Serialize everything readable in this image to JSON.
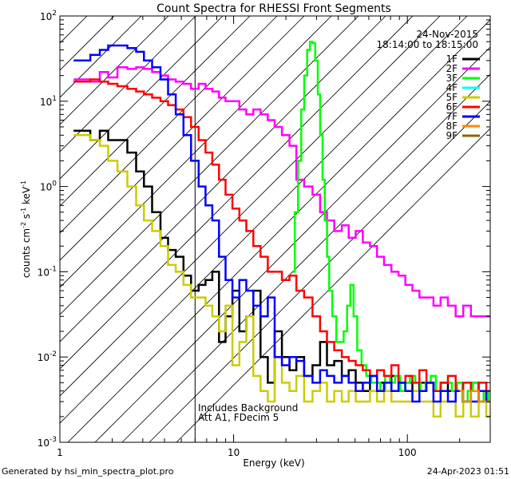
{
  "chart_data": {
    "type": "line",
    "title": "Count Spectra for RHESSI Front Segments",
    "xlabel": "Energy (keV)",
    "ylabel_parts": [
      "counts cm",
      "-2",
      " s",
      "-1",
      " keV",
      "-1"
    ],
    "xscale": "log",
    "yscale": "log",
    "xlim": [
      1,
      300
    ],
    "ylim": [
      0.001,
      100
    ],
    "x_tick_labels": [
      {
        "v": 1,
        "t": "1"
      },
      {
        "v": 10,
        "t": "10"
      },
      {
        "v": 100,
        "t": "100"
      }
    ],
    "y_tick_labels": [
      {
        "v": 0.001,
        "b": "10",
        "e": "-3"
      },
      {
        "v": 0.01,
        "b": "10",
        "e": "-2"
      },
      {
        "v": 0.1,
        "b": "10",
        "e": "-1"
      },
      {
        "v": 1,
        "b": "10",
        "e": "0"
      },
      {
        "v": 10,
        "b": "10",
        "e": "1"
      },
      {
        "v": 100,
        "b": "10",
        "e": "2"
      }
    ],
    "date_text": "24-Nov-2015",
    "time_text": "18:14:00 to 18:15:00",
    "annotation_lines": [
      "Includes Background",
      "Att A1, FDecim 5"
    ],
    "attenuated_below_keV": 6,
    "footer_left": "Generated by hsi_min_spectra_plot.pro",
    "footer_right": "24-Apr-2023 01:51",
    "legend": [
      {
        "name": "1F",
        "color": "#000000"
      },
      {
        "name": "2F",
        "color": "#ff00ff"
      },
      {
        "name": "3F",
        "color": "#00ff00"
      },
      {
        "name": "4F",
        "color": "#00ffff"
      },
      {
        "name": "5F",
        "color": "#cccc00"
      },
      {
        "name": "6F",
        "color": "#ff0000"
      },
      {
        "name": "7F",
        "color": "#0000ff"
      },
      {
        "name": "8F",
        "color": "#ff8800"
      },
      {
        "name": "9F",
        "color": "#886600"
      }
    ],
    "series": [
      {
        "name": "1F",
        "color": "#000000",
        "x": [
          1.2,
          1.4,
          1.6,
          1.8,
          2.0,
          2.3,
          2.6,
          2.9,
          3.2,
          3.6,
          4.0,
          4.4,
          4.9,
          5.4,
          6.0,
          6.6,
          7.2,
          7.9,
          8.6,
          9.4,
          10.3,
          11.3,
          12.4,
          13.6,
          15,
          16.5,
          18,
          20,
          22,
          24,
          27,
          30,
          33,
          36,
          40,
          44,
          48,
          53,
          58,
          64,
          70,
          77,
          85,
          93,
          102,
          112,
          123,
          135,
          148,
          163,
          180,
          200,
          220,
          245,
          270,
          300
        ],
        "y": [
          4.5,
          4.5,
          3.5,
          4.5,
          3.5,
          3.5,
          2.5,
          1.5,
          1.0,
          0.5,
          0.25,
          0.18,
          0.15,
          0.09,
          0.06,
          0.07,
          0.08,
          0.1,
          0.015,
          0.03,
          0.06,
          0.02,
          0.03,
          0.06,
          0.01,
          0.005,
          0.02,
          0.01,
          0.007,
          0.01,
          0.006,
          0.008,
          0.015,
          0.008,
          0.009,
          0.006,
          0.007,
          0.005,
          0.004,
          0.006,
          0.005,
          0.004,
          0.006,
          0.005,
          0.005,
          0.004,
          0.005,
          0.005,
          0.004,
          0.005,
          0.004,
          0.004,
          0.003,
          0.005,
          0.003,
          0.004
        ]
      },
      {
        "name": "2F",
        "color": "#ff00ff",
        "x": [
          1.2,
          1.4,
          1.6,
          1.8,
          2.0,
          2.3,
          2.6,
          2.9,
          3.2,
          3.6,
          4.0,
          4.4,
          4.9,
          5.4,
          6.0,
          6.6,
          7.2,
          7.9,
          8.6,
          9.4,
          10.3,
          11.3,
          12.4,
          13.6,
          15,
          16.5,
          18,
          20,
          22,
          24,
          27,
          30,
          33,
          36,
          40,
          44,
          48,
          53,
          58,
          64,
          70,
          77,
          85,
          93,
          102,
          112,
          123,
          135,
          148,
          163,
          180,
          200,
          220,
          245,
          270,
          300
        ],
        "y": [
          18,
          18,
          17,
          22,
          19,
          25,
          24,
          25,
          24,
          22,
          20,
          18,
          17,
          16,
          14,
          16,
          14,
          13,
          11,
          10,
          10,
          8,
          7,
          8,
          7,
          6,
          5,
          4,
          3,
          1.2,
          1.0,
          0.8,
          0.5,
          0.4,
          0.3,
          0.35,
          0.25,
          0.3,
          0.22,
          0.2,
          0.15,
          0.12,
          0.1,
          0.09,
          0.07,
          0.06,
          0.05,
          0.05,
          0.04,
          0.05,
          0.04,
          0.03,
          0.04,
          0.03,
          0.03,
          0.03
        ]
      },
      {
        "name": "3F",
        "color": "#00ff00",
        "x": [
          22,
          23,
          24,
          25,
          26,
          27,
          28,
          29,
          30,
          31,
          32,
          33,
          34,
          35,
          36,
          38,
          40,
          42,
          44,
          46,
          48,
          50,
          53,
          56,
          60,
          64,
          68,
          72,
          77,
          82,
          88,
          94,
          100,
          107,
          115,
          123,
          132,
          141,
          151,
          162,
          174,
          187,
          200,
          215,
          230,
          247,
          265,
          285,
          300
        ],
        "y": [
          0.1,
          0.5,
          2,
          8,
          20,
          40,
          50,
          48,
          30,
          12,
          4,
          1.2,
          0.4,
          0.15,
          0.06,
          0.03,
          0.015,
          0.015,
          0.02,
          0.04,
          0.07,
          0.03,
          0.012,
          0.008,
          0.006,
          0.005,
          0.005,
          0.004,
          0.006,
          0.005,
          0.006,
          0.004,
          0.005,
          0.006,
          0.005,
          0.004,
          0.005,
          0.006,
          0.004,
          0.005,
          0.005,
          0.004,
          0.005,
          0.003,
          0.004,
          0.005,
          0.004,
          0.003,
          0.004
        ]
      },
      {
        "name": "5F",
        "color": "#cccc00",
        "x": [
          1.2,
          1.4,
          1.6,
          1.8,
          2.0,
          2.3,
          2.6,
          2.9,
          3.2,
          3.6,
          4.0,
          4.4,
          4.9,
          5.4,
          6.0,
          6.6,
          7.2,
          7.9,
          8.6,
          9.4,
          10.3,
          11.3,
          12.4,
          13.6,
          15,
          16.5,
          18,
          20,
          22,
          24,
          27,
          30,
          33,
          36,
          40,
          44,
          48,
          53,
          58,
          64,
          70,
          77,
          85,
          93,
          102,
          112,
          123,
          135,
          148,
          163,
          180,
          200,
          220,
          245,
          270,
          300
        ],
        "y": [
          4.0,
          4.0,
          3.5,
          3.0,
          2.0,
          1.5,
          1.0,
          0.6,
          0.4,
          0.3,
          0.2,
          0.12,
          0.1,
          0.07,
          0.05,
          0.05,
          0.04,
          0.03,
          0.02,
          0.04,
          0.008,
          0.015,
          0.03,
          0.006,
          0.004,
          0.003,
          0.01,
          0.005,
          0.004,
          0.006,
          0.003,
          0.004,
          0.005,
          0.003,
          0.004,
          0.003,
          0.004,
          0.003,
          0.003,
          0.004,
          0.003,
          0.004,
          0.003,
          0.003,
          0.003,
          0.004,
          0.003,
          0.003,
          0.002,
          0.003,
          0.003,
          0.002,
          0.003,
          0.002,
          0.003,
          0.002
        ]
      },
      {
        "name": "6F",
        "color": "#ff0000",
        "x": [
          1.2,
          1.4,
          1.6,
          1.8,
          2.0,
          2.3,
          2.6,
          2.9,
          3.2,
          3.6,
          4.0,
          4.4,
          4.9,
          5.4,
          6.0,
          6.6,
          7.2,
          7.9,
          8.6,
          9.4,
          10.3,
          11.3,
          12.4,
          13.6,
          15,
          16.5,
          18,
          20,
          22,
          24,
          27,
          30,
          33,
          36,
          40,
          44,
          48,
          53,
          58,
          64,
          70,
          77,
          85,
          93,
          102,
          112,
          123,
          135,
          148,
          163,
          180,
          200,
          220,
          245,
          270,
          300
        ],
        "y": [
          17,
          17,
          18,
          17,
          16,
          15,
          14,
          13,
          12,
          11,
          10,
          9,
          8,
          6.5,
          5.0,
          3.5,
          2.5,
          1.8,
          1.2,
          0.8,
          0.55,
          0.4,
          0.3,
          0.2,
          0.15,
          0.1,
          0.1,
          0.08,
          0.09,
          0.06,
          0.05,
          0.03,
          0.02,
          0.015,
          0.012,
          0.01,
          0.009,
          0.008,
          0.007,
          0.006,
          0.007,
          0.006,
          0.008,
          0.005,
          0.006,
          0.005,
          0.007,
          0.005,
          0.004,
          0.005,
          0.006,
          0.004,
          0.005,
          0.004,
          0.005,
          0.004
        ]
      },
      {
        "name": "7F",
        "color": "#0000ff",
        "x": [
          1.2,
          1.4,
          1.6,
          1.8,
          2.0,
          2.3,
          2.6,
          2.9,
          3.2,
          3.6,
          4.0,
          4.4,
          4.9,
          5.4,
          6.0,
          6.6,
          7.2,
          7.9,
          8.6,
          9.4,
          10.3,
          11.3,
          12.4,
          13.6,
          15,
          16.5,
          18,
          20,
          22,
          24,
          27,
          30,
          33,
          36,
          40,
          44,
          48,
          53,
          58,
          64,
          70,
          77,
          85,
          93,
          102,
          112,
          123,
          135,
          148,
          163,
          180,
          200,
          220,
          245,
          270,
          300
        ],
        "y": [
          30,
          30,
          35,
          40,
          45,
          45,
          42,
          38,
          30,
          25,
          18,
          12,
          7,
          4,
          2,
          1.0,
          0.6,
          0.4,
          0.15,
          0.08,
          0.05,
          0.08,
          0.06,
          0.04,
          0.03,
          0.05,
          0.01,
          0.008,
          0.01,
          0.009,
          0.006,
          0.005,
          0.007,
          0.006,
          0.005,
          0.006,
          0.005,
          0.004,
          0.005,
          0.006,
          0.004,
          0.005,
          0.004,
          0.005,
          0.004,
          0.003,
          0.004,
          0.005,
          0.003,
          0.004,
          0.003,
          0.004,
          0.003,
          0.003,
          0.004,
          0.003
        ]
      },
      {
        "name": "8F",
        "color": "#ff8800",
        "x": [
          200,
          220,
          245,
          270,
          300
        ],
        "y": [
          0.004,
          0.003,
          0.004,
          0.003,
          0.003
        ]
      }
    ]
  }
}
